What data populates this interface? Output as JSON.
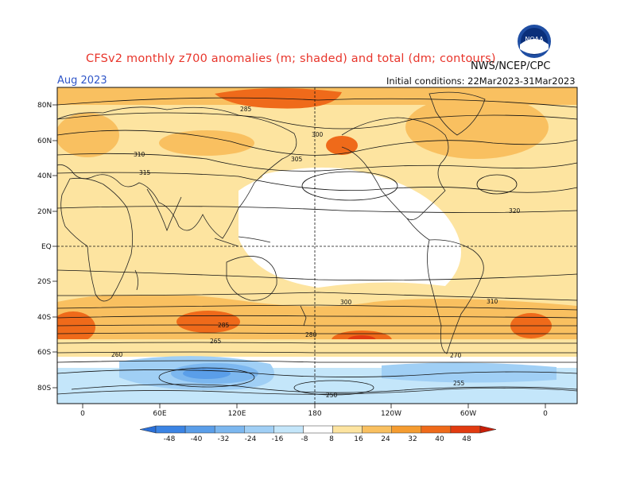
{
  "header": {
    "title": "CFSv2 monthly z700 anomalies (m; shaded) and total (dm; contours)",
    "period": "Aug 2023",
    "agency": "NWS/NCEP/CPC",
    "initial_conditions": "Initial conditions: 22Mar2023-31Mar2023",
    "logo_text": "NOAA"
  },
  "map": {
    "lat_labels": [
      "80N",
      "60N",
      "40N",
      "20N",
      "EQ",
      "20S",
      "40S",
      "60S",
      "80S"
    ],
    "lon_labels": [
      "0",
      "60E",
      "120E",
      "180",
      "120W",
      "60W",
      "0"
    ],
    "contour_labels": [
      "285",
      "300",
      "305",
      "310",
      "315",
      "320",
      "310",
      "300",
      "285",
      "280",
      "270",
      "265",
      "255",
      "250",
      "260"
    ]
  },
  "colorbar": {
    "labels": [
      "-48",
      "-40",
      "-32",
      "-24",
      "-16",
      "-8",
      "8",
      "16",
      "24",
      "32",
      "40",
      "48"
    ],
    "colors": [
      "#2a6fd8",
      "#3b84e4",
      "#5a9ee9",
      "#7cb7ef",
      "#a0cff5",
      "#c4e6fa",
      "#ffffff",
      "#fde4a0",
      "#f9c060",
      "#f59c30",
      "#ef6a1a",
      "#e23b10",
      "#c81e08"
    ]
  }
}
